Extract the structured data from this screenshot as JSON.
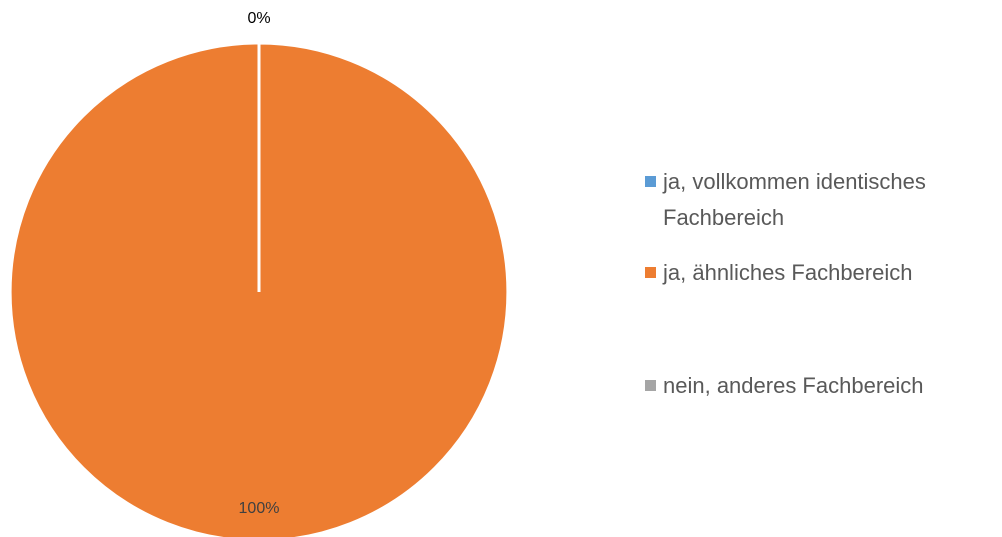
{
  "chart_data": {
    "type": "pie",
    "categories": [
      "ja, vollkommen identisches Fachbereich",
      "ja, ähnliches Fachbereich",
      "nein, anderes Fachbereich"
    ],
    "values": [
      0,
      100,
      0
    ],
    "value_labels": [
      "0%",
      "100%",
      null
    ],
    "colors": [
      "#5b9bd5",
      "#ed7d31",
      "#a5a5a5"
    ],
    "legend": "right"
  }
}
